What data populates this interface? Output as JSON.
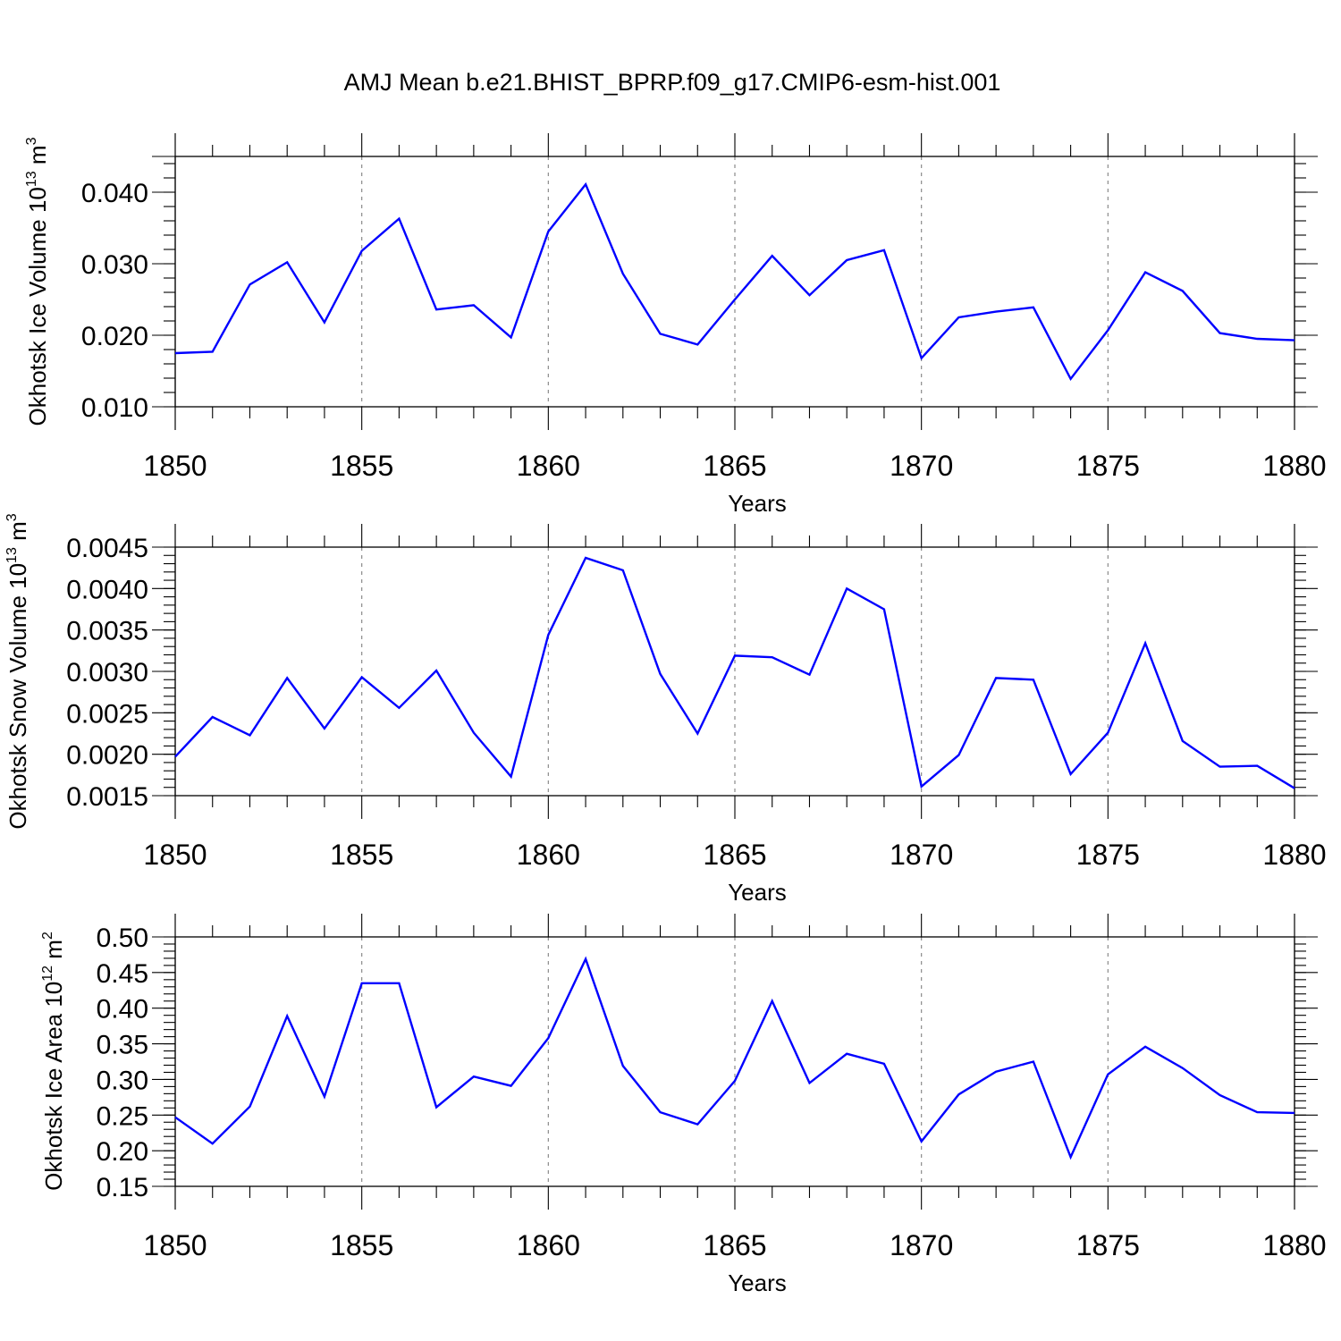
{
  "title": "AMJ Mean b.e21.BHIST_BPRP.f09_g17.CMIP6-esm-hist.001",
  "line_color": "#0000ff",
  "chart_data": [
    {
      "type": "line",
      "id": "ice-volume",
      "xlabel": "Years",
      "ylabel": {
        "main": "Okhotsk Ice Volume 10",
        "exp": "13",
        "unit": " m",
        "unit_exp": "3"
      },
      "xlim": [
        1850,
        1880
      ],
      "ylim": [
        0.01,
        0.045
      ],
      "xticks": [
        "1850",
        "1855",
        "1860",
        "1865",
        "1870",
        "1875",
        "1880"
      ],
      "yticks": [
        {
          "value": 0.01,
          "label": "0.010"
        },
        {
          "value": 0.02,
          "label": "0.020"
        },
        {
          "value": 0.03,
          "label": "0.030"
        },
        {
          "value": 0.04,
          "label": "0.040"
        }
      ],
      "minor_y_step": 0.002,
      "grid": "dashed vertical at major x ticks",
      "x": [
        1850,
        1851,
        1852,
        1853,
        1854,
        1855,
        1856,
        1857,
        1858,
        1859,
        1860,
        1861,
        1862,
        1863,
        1864,
        1865,
        1866,
        1867,
        1868,
        1869,
        1870,
        1871,
        1872,
        1873,
        1874,
        1875,
        1876,
        1877,
        1878,
        1879,
        1880
      ],
      "values": [
        0.0175,
        0.0177,
        0.0271,
        0.0302,
        0.0218,
        0.0318,
        0.0363,
        0.0236,
        0.0242,
        0.0197,
        0.0345,
        0.0411,
        0.0286,
        0.0202,
        0.0187,
        0.025,
        0.0311,
        0.0256,
        0.0305,
        0.0319,
        0.0168,
        0.0225,
        0.0233,
        0.0239,
        0.0139,
        0.0207,
        0.0288,
        0.0262,
        0.0203,
        0.0195,
        0.0193
      ]
    },
    {
      "type": "line",
      "id": "snow-volume",
      "xlabel": "Years",
      "ylabel": {
        "main": "Okhotsk Snow Volume 10",
        "exp": "13",
        "unit": " m",
        "unit_exp": "3"
      },
      "xlim": [
        1850,
        1880
      ],
      "ylim": [
        0.0015,
        0.0045
      ],
      "xticks": [
        "1850",
        "1855",
        "1860",
        "1865",
        "1870",
        "1875",
        "1880"
      ],
      "yticks": [
        {
          "value": 0.0015,
          "label": "0.0015"
        },
        {
          "value": 0.002,
          "label": "0.0020"
        },
        {
          "value": 0.0025,
          "label": "0.0025"
        },
        {
          "value": 0.003,
          "label": "0.0030"
        },
        {
          "value": 0.0035,
          "label": "0.0035"
        },
        {
          "value": 0.004,
          "label": "0.0040"
        },
        {
          "value": 0.0045,
          "label": "0.0045"
        }
      ],
      "minor_y_step": 0.0001,
      "grid": "dashed vertical at major x ticks",
      "x": [
        1850,
        1851,
        1852,
        1853,
        1854,
        1855,
        1856,
        1857,
        1858,
        1859,
        1860,
        1861,
        1862,
        1863,
        1864,
        1865,
        1866,
        1867,
        1868,
        1869,
        1870,
        1871,
        1872,
        1873,
        1874,
        1875,
        1876,
        1877,
        1878,
        1879,
        1880
      ],
      "values": [
        0.00197,
        0.00245,
        0.00223,
        0.00292,
        0.00231,
        0.00293,
        0.00256,
        0.00301,
        0.00226,
        0.00173,
        0.00344,
        0.00437,
        0.00422,
        0.00297,
        0.00225,
        0.00319,
        0.00317,
        0.00296,
        0.004,
        0.00375,
        0.00161,
        0.00199,
        0.00292,
        0.0029,
        0.00176,
        0.00226,
        0.00334,
        0.00216,
        0.00185,
        0.00186,
        0.00159
      ]
    },
    {
      "type": "line",
      "id": "ice-area",
      "xlabel": "Years",
      "ylabel": {
        "main": "Okhotsk Ice Area 10",
        "exp": "12",
        "unit": " m",
        "unit_exp": "2"
      },
      "xlim": [
        1850,
        1880
      ],
      "ylim": [
        0.15,
        0.5
      ],
      "xticks": [
        "1850",
        "1855",
        "1860",
        "1865",
        "1870",
        "1875",
        "1880"
      ],
      "yticks": [
        {
          "value": 0.15,
          "label": "0.15"
        },
        {
          "value": 0.2,
          "label": "0.20"
        },
        {
          "value": 0.25,
          "label": "0.25"
        },
        {
          "value": 0.3,
          "label": "0.30"
        },
        {
          "value": 0.35,
          "label": "0.35"
        },
        {
          "value": 0.4,
          "label": "0.40"
        },
        {
          "value": 0.45,
          "label": "0.45"
        },
        {
          "value": 0.5,
          "label": "0.50"
        }
      ],
      "minor_y_step": 0.01,
      "grid": "dashed vertical at major x ticks",
      "x": [
        1850,
        1851,
        1852,
        1853,
        1854,
        1855,
        1856,
        1857,
        1858,
        1859,
        1860,
        1861,
        1862,
        1863,
        1864,
        1865,
        1866,
        1867,
        1868,
        1869,
        1870,
        1871,
        1872,
        1873,
        1874,
        1875,
        1876,
        1877,
        1878,
        1879,
        1880
      ],
      "values": [
        0.247,
        0.21,
        0.262,
        0.389,
        0.276,
        0.435,
        0.435,
        0.261,
        0.304,
        0.291,
        0.358,
        0.469,
        0.319,
        0.254,
        0.237,
        0.298,
        0.41,
        0.295,
        0.336,
        0.322,
        0.213,
        0.279,
        0.311,
        0.325,
        0.191,
        0.307,
        0.346,
        0.316,
        0.278,
        0.254,
        0.253
      ]
    }
  ]
}
